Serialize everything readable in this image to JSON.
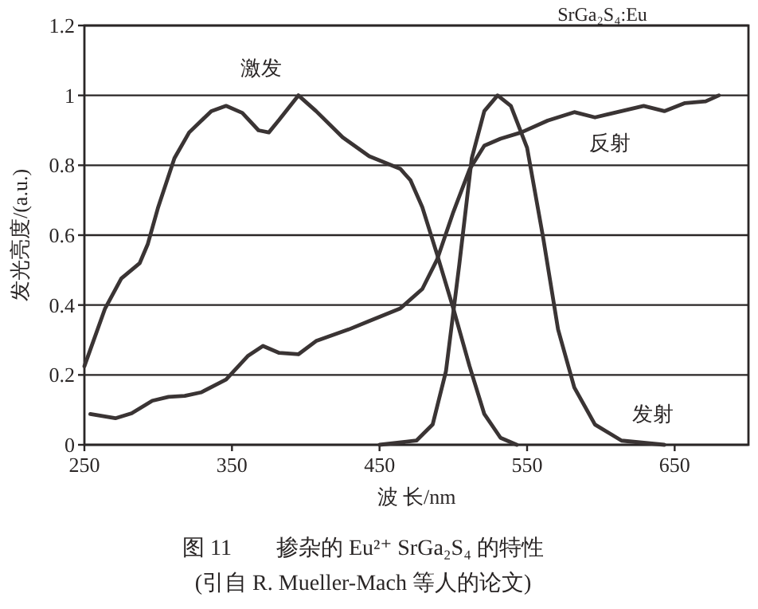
{
  "chart_data": {
    "type": "line",
    "title": "图 11　　掺杂的 Eu²⁺ SrGa₂S₄ 的特性",
    "subtitle": "SrGa₂S₄:Eu",
    "xlabel": "波 长/nm",
    "ylabel": "发光亮度/(a.u.)",
    "xlim": [
      250,
      700
    ],
    "ylim": [
      0,
      1.2
    ],
    "xticks": [
      250,
      350,
      450,
      550,
      650
    ],
    "yticks": [
      0,
      0.2,
      0.4,
      0.6,
      0.8,
      1,
      1.2
    ],
    "grid": "y",
    "series": [
      {
        "name": "激发",
        "color": "#3a3434",
        "x": [
          250,
          264,
          275,
          287.5,
          293,
          300,
          311,
          321,
          336,
          346,
          357,
          368,
          375,
          382,
          395,
          407,
          425,
          443,
          464,
          471,
          479,
          489,
          500,
          511,
          521,
          532,
          543
        ],
        "values": [
          0.225,
          0.39,
          0.476,
          0.52,
          0.575,
          0.68,
          0.82,
          0.894,
          0.955,
          0.97,
          0.95,
          0.9,
          0.894,
          0.93,
          1.0,
          0.955,
          0.88,
          0.826,
          0.79,
          0.757,
          0.68,
          0.545,
          0.39,
          0.225,
          0.088,
          0.02,
          0
        ]
      },
      {
        "name": "反射",
        "color": "#3a3434",
        "x": [
          254,
          271,
          282,
          296,
          307,
          318,
          329,
          346,
          361,
          371,
          382,
          395,
          407,
          429,
          443,
          464,
          479,
          489,
          500,
          511,
          521,
          532,
          546,
          564,
          582,
          596,
          614,
          629,
          643,
          657,
          671,
          680
        ],
        "values": [
          0.088,
          0.076,
          0.09,
          0.126,
          0.137,
          0.14,
          0.15,
          0.187,
          0.255,
          0.283,
          0.263,
          0.259,
          0.297,
          0.33,
          0.354,
          0.39,
          0.446,
          0.53,
          0.666,
          0.788,
          0.856,
          0.876,
          0.894,
          0.928,
          0.952,
          0.937,
          0.955,
          0.97,
          0.955,
          0.978,
          0.983,
          1.0
        ]
      },
      {
        "name": "发射",
        "color": "#3a3434",
        "x": [
          450,
          475,
          486,
          495,
          504,
          512.5,
          521,
          530,
          539,
          550,
          561,
          571,
          582,
          596,
          614,
          643
        ],
        "values": [
          0,
          0.012,
          0.058,
          0.21,
          0.514,
          0.82,
          0.955,
          1.0,
          0.97,
          0.85,
          0.59,
          0.33,
          0.164,
          0.058,
          0.012,
          0
        ]
      }
    ],
    "annotations": [
      "(引自 R. Mueller-Mach 等人的论文)"
    ]
  }
}
